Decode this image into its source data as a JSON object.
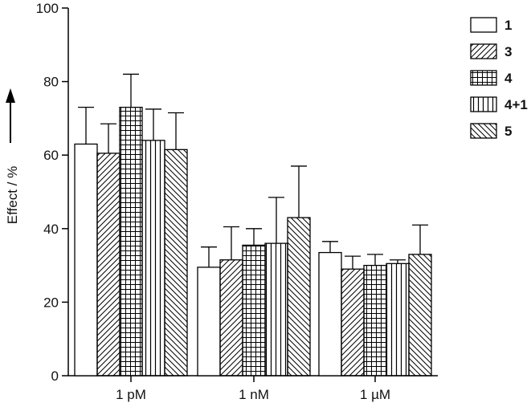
{
  "chart_data": {
    "type": "bar",
    "ylabel": "Effect / %",
    "ylim": [
      0,
      100
    ],
    "yticks": [
      "0",
      "20",
      "40",
      "60",
      "80",
      "100"
    ],
    "categories": [
      "1 pM",
      "1 nM",
      "1 µM"
    ],
    "series": [
      {
        "name": "1",
        "pattern": "none",
        "values": [
          63,
          29.5,
          33.5
        ],
        "errors": [
          10,
          5.5,
          3
        ]
      },
      {
        "name": "3",
        "pattern": "diag-up",
        "values": [
          60.5,
          31.5,
          29
        ],
        "errors": [
          8,
          9,
          3.5
        ]
      },
      {
        "name": "4",
        "pattern": "grid",
        "values": [
          73,
          35.5,
          30
        ],
        "errors": [
          9,
          4.5,
          3
        ]
      },
      {
        "name": "4+1",
        "pattern": "vertical",
        "values": [
          64,
          36,
          30.5
        ],
        "errors": [
          8.5,
          12.5,
          1
        ]
      },
      {
        "name": "5",
        "pattern": "diag-down",
        "values": [
          61.5,
          43,
          33
        ],
        "errors": [
          10,
          14,
          8
        ]
      }
    ],
    "legend_position": "top-right",
    "grid": false
  }
}
